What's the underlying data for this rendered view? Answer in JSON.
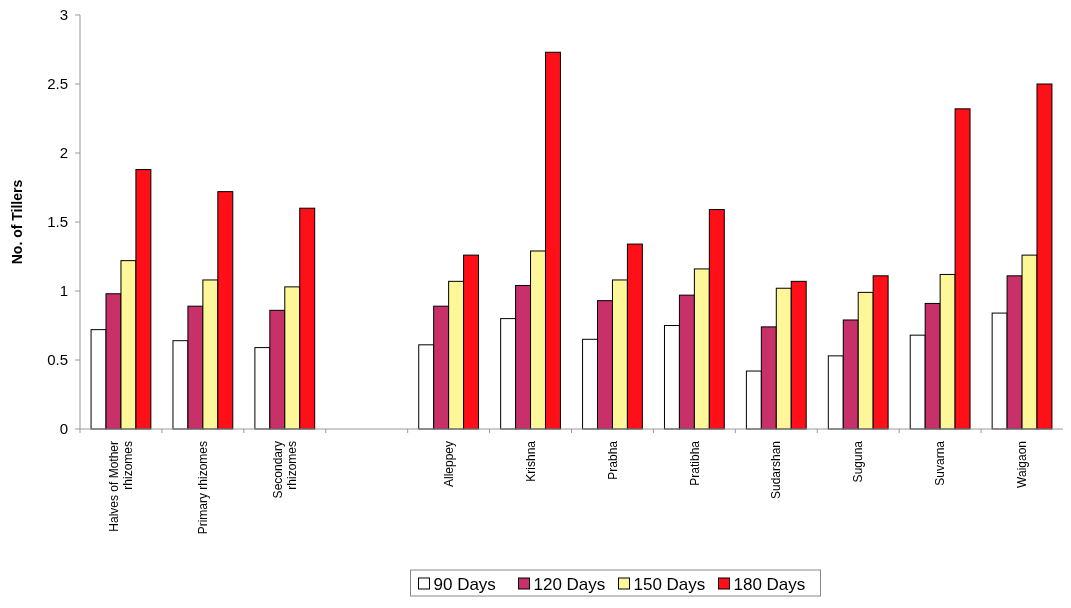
{
  "chart_data": {
    "type": "bar",
    "ylabel": "No. of Tillers",
    "categories": [
      "Halves of Mother rhizomes",
      "Primary rhizomes",
      "Secondary rhizomes",
      null,
      "Alleppey",
      "Krishna",
      "Prabha",
      "Pratibha",
      "Sudarshan",
      "Suguna",
      "Suvarna",
      "Waigaon"
    ],
    "series": [
      {
        "name": "90 Days",
        "color": "#ffffff",
        "values": [
          0.72,
          0.64,
          0.59,
          null,
          0.61,
          0.8,
          0.65,
          0.75,
          0.42,
          0.53,
          0.68,
          0.84
        ]
      },
      {
        "name": "120 Days",
        "color": "#c8306a",
        "values": [
          0.98,
          0.89,
          0.86,
          null,
          0.89,
          1.04,
          0.93,
          0.97,
          0.74,
          0.79,
          0.91,
          1.11
        ]
      },
      {
        "name": "150 Days",
        "color": "#fdf79a",
        "values": [
          1.22,
          1.08,
          1.03,
          null,
          1.07,
          1.29,
          1.08,
          1.16,
          1.02,
          0.99,
          1.12,
          1.26
        ]
      },
      {
        "name": "180 Days",
        "color": "#ff1018",
        "values": [
          1.88,
          1.72,
          1.6,
          null,
          1.26,
          2.73,
          1.34,
          1.59,
          1.07,
          1.11,
          2.32,
          2.5
        ]
      }
    ],
    "ylim": [
      0,
      3
    ],
    "yticks": [
      0,
      0.5,
      1,
      1.5,
      2,
      2.5,
      3
    ],
    "grid": false,
    "legend": "bottom"
  }
}
